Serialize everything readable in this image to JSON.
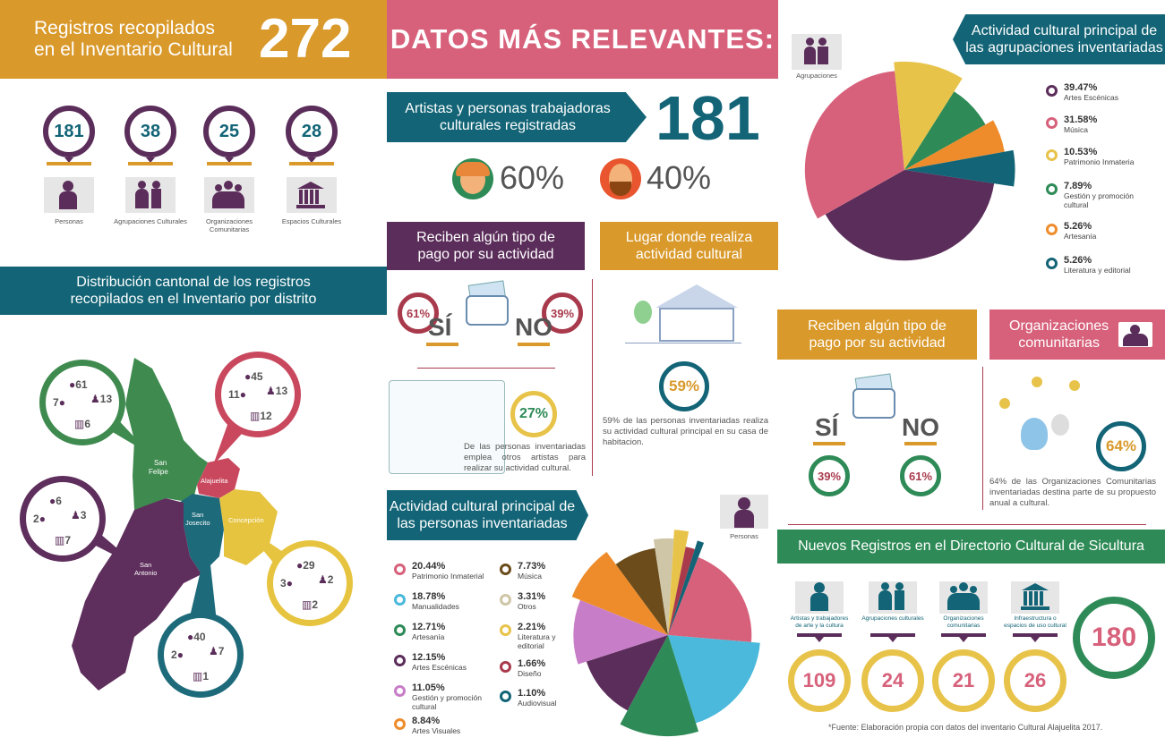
{
  "colors": {
    "gold": "#D9992B",
    "pink": "#D7617B",
    "teal": "#126476",
    "purple": "#5B2D5A",
    "green": "#2E8B57",
    "yellow": "#E8C34A",
    "sky": "#4BB9DB",
    "orange": "#EE8C2B",
    "lilac": "#C87DC8",
    "olive": "#6B4C1A",
    "beige": "#CFC6A8",
    "map_green": "#3F8A4F",
    "map_purple": "#5E2E5C",
    "map_teal": "#1D6A7B",
    "map_yellow": "#E6C440",
    "map_pink": "#C9485E"
  },
  "header": {
    "title_line1": "Registros recopilados",
    "title_line2": "en el Inventario Cultural",
    "total": "272"
  },
  "summary": [
    {
      "value": "181",
      "label": "Personas",
      "icon": "person-icon"
    },
    {
      "value": "38",
      "label": "Agrupaciones Culturales",
      "icon": "couple-icon"
    },
    {
      "value": "25",
      "label": "Organizaciones Comunitarias",
      "icon": "group-icon"
    },
    {
      "value": "28",
      "label": "Espacios Culturales",
      "icon": "building-icon"
    }
  ],
  "distribution": {
    "title_line1": "Distribución cantonal de los registros",
    "title_line2": "recopilados en el Inventario por distrito",
    "districts": [
      {
        "name": "San Felipe",
        "personas": "61",
        "agrupaciones": "13",
        "organizaciones": "7",
        "espacios": "6"
      },
      {
        "name": "Alajuelita",
        "personas": "45",
        "agrupaciones": "13",
        "organizaciones": "11",
        "espacios": "12"
      },
      {
        "name": "San Antonio",
        "personas": "6",
        "agrupaciones": "3",
        "organizaciones": "2",
        "espacios": "7"
      },
      {
        "name": "Concepción",
        "personas": "29",
        "agrupaciones": "2",
        "organizaciones": "3",
        "espacios": "2"
      },
      {
        "name": "San Josecito",
        "personas": "40",
        "agrupaciones": "7",
        "organizaciones": "2",
        "espacios": "1"
      }
    ]
  },
  "main": {
    "title": "DATOS MÁS RELEVANTES:",
    "artists": {
      "label_line1": "Artistas y personas trabajadoras",
      "label_line2": "culturales registradas",
      "value": "181",
      "women_pct": "60%",
      "men_pct": "40%"
    },
    "pay": {
      "title_line1": "Reciben algún tipo de",
      "title_line2": "pago por su actividad",
      "yes_pct": "61%",
      "no_pct": "39%",
      "yes": "SÍ",
      "no": "NO",
      "hire_pct": "27%",
      "hire_text": "De las personas inventariadas emplea otros artistas para realizar su actividad cultural."
    },
    "place": {
      "title_line1": "Lugar donde realiza",
      "title_line2": "actividad cultural",
      "pct": "59%",
      "text": "59% de las personas inventariadas realiza su actividad cultural principal en su casa de habitacion."
    },
    "activity": {
      "title_line1": "Actividad cultural principal de",
      "title_line2": "las personas inventariadas",
      "person_label": "Personas",
      "items": [
        {
          "pct": "20.44%",
          "label": "Patrimonio Inmaterial",
          "color": "#D7617B"
        },
        {
          "pct": "18.78%",
          "label": "Manualidades",
          "color": "#4BB9DB"
        },
        {
          "pct": "12.71%",
          "label": "Artesanía",
          "color": "#2E8B57"
        },
        {
          "pct": "12.15%",
          "label": "Artes Escénicas",
          "color": "#5B2D5A"
        },
        {
          "pct": "11.05%",
          "label": "Gestión y promoción cultural",
          "color": "#C87DC8"
        },
        {
          "pct": "8.84%",
          "label": "Artes Visuales",
          "color": "#EE8C2B"
        },
        {
          "pct": "7.73%",
          "label": "Música",
          "color": "#6B4C1A"
        },
        {
          "pct": "3.31%",
          "label": "Otros",
          "color": "#CFC6A8"
        },
        {
          "pct": "2.21%",
          "label": "Literatura y editorial",
          "color": "#E8C34A"
        },
        {
          "pct": "1.66%",
          "label": "Diseño",
          "color": "#A83A4C"
        },
        {
          "pct": "1.10%",
          "label": "Audiovisual",
          "color": "#126476"
        }
      ]
    }
  },
  "groups": {
    "title_line1": "Actividad cultural principal de",
    "title_line2": "las agrupaciones inventariadas",
    "icon_label": "Agrupaciones",
    "items": [
      {
        "pct": "39.47%",
        "label": "Artes Escénicas",
        "color": "#5B2D5A"
      },
      {
        "pct": "31.58%",
        "label": "Música",
        "color": "#D7617B"
      },
      {
        "pct": "10.53%",
        "label": "Patrimonio Inmateria",
        "color": "#E8C34A"
      },
      {
        "pct": "7.89%",
        "label": "Gestión y promoción cultural",
        "color": "#2E8B57"
      },
      {
        "pct": "5.26%",
        "label": "Artesanía",
        "color": "#EE8C2B"
      },
      {
        "pct": "5.26%",
        "label": "Literatura y editorial",
        "color": "#126476"
      }
    ]
  },
  "groups_pay": {
    "title_line1": "Reciben algún tipo de",
    "title_line2": "pago por su actividad",
    "yes": "SÍ",
    "no": "NO",
    "yes_pct": "39%",
    "no_pct": "61%"
  },
  "orgs": {
    "title_line1": "Organizaciones",
    "title_line2": "comunitarias",
    "pct": "64%",
    "text": "64% de las Organizaciones Comunitarias inventariadas destina parte de su propuesto anual a cultural."
  },
  "sicultura": {
    "title": "Nuevos Registros en el Directorio Cultural de Sicultura",
    "total": "180",
    "items": [
      {
        "value": "109",
        "label": "Artistas y trabajadores de arte y la cultura",
        "icon": "person-icon"
      },
      {
        "value": "24",
        "label": "Agrupaciones culturales",
        "icon": "couple-icon"
      },
      {
        "value": "21",
        "label": "Organizaciones comunitarias",
        "icon": "group-icon"
      },
      {
        "value": "26",
        "label": "Infraestructura o espacios de uso cultural",
        "icon": "building-icon"
      }
    ]
  },
  "source": "*Fuente: Elaboración propia con datos del inventario Cultural Alajuelita 2017."
}
